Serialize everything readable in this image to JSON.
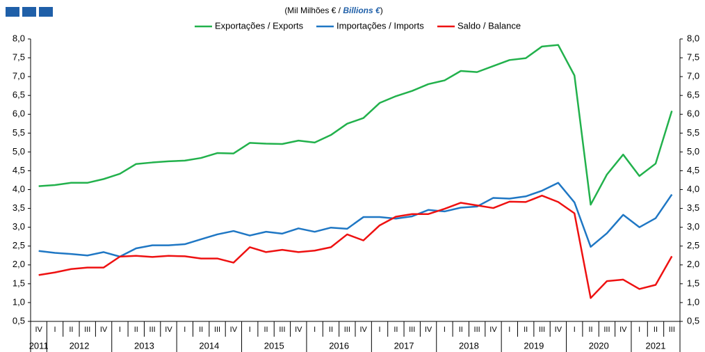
{
  "chart_data": {
    "type": "line",
    "subtitle": [
      "(Mil Milhões  € / ",
      "Billions €",
      ")"
    ],
    "categories": [
      "IV",
      "I",
      "II",
      "III",
      "IV",
      "I",
      "II",
      "III",
      "IV",
      "I",
      "II",
      "III",
      "IV",
      "I",
      "II",
      "III",
      "IV",
      "I",
      "II",
      "III",
      "IV",
      "I",
      "II",
      "III",
      "IV",
      "I",
      "II",
      "III",
      "IV",
      "I",
      "II",
      "III",
      "IV",
      "I",
      "II",
      "III",
      "IV",
      "I",
      "II",
      "III"
    ],
    "years": [
      "2011",
      "2012",
      "2013",
      "2014",
      "2015",
      "2016",
      "2017",
      "2018",
      "2019",
      "2020",
      "2021"
    ],
    "series": [
      {
        "name": "Exportações / Exports",
        "color": "#22b14c",
        "values": [
          4.09,
          4.12,
          4.18,
          4.18,
          4.28,
          4.42,
          4.68,
          4.72,
          4.75,
          4.77,
          4.84,
          4.97,
          4.96,
          5.24,
          5.22,
          5.21,
          5.3,
          5.25,
          5.45,
          5.75,
          5.9,
          6.3,
          6.48,
          6.62,
          6.8,
          6.9,
          7.15,
          7.12,
          7.28,
          7.44,
          7.49,
          7.8,
          7.84,
          7.03,
          3.6,
          4.4,
          4.93,
          4.36,
          4.69,
          6.09
        ]
      },
      {
        "name": "Importações / Imports",
        "color": "#1f77c4",
        "values": [
          2.37,
          2.32,
          2.29,
          2.25,
          2.34,
          2.22,
          2.44,
          2.52,
          2.52,
          2.55,
          2.68,
          2.81,
          2.9,
          2.78,
          2.88,
          2.83,
          2.97,
          2.88,
          2.99,
          2.96,
          3.27,
          3.27,
          3.23,
          3.29,
          3.46,
          3.42,
          3.52,
          3.55,
          3.78,
          3.76,
          3.82,
          3.97,
          4.18,
          3.66,
          2.48,
          2.84,
          3.33,
          3.0,
          3.24,
          3.87
        ]
      },
      {
        "name": "Saldo / Balance",
        "color": "#ee1111",
        "values": [
          1.73,
          1.8,
          1.89,
          1.93,
          1.93,
          2.22,
          2.24,
          2.21,
          2.24,
          2.23,
          2.17,
          2.17,
          2.06,
          2.47,
          2.34,
          2.4,
          2.34,
          2.38,
          2.47,
          2.81,
          2.65,
          3.05,
          3.28,
          3.35,
          3.35,
          3.49,
          3.65,
          3.58,
          3.51,
          3.68,
          3.67,
          3.84,
          3.67,
          3.37,
          1.12,
          1.57,
          1.61,
          1.36,
          1.47,
          2.23
        ]
      }
    ],
    "ylim": [
      0.5,
      8.0
    ],
    "yticks": [
      {
        "value": 0.5,
        "label": "0,5"
      },
      {
        "value": 1.0,
        "label": "1,0"
      },
      {
        "value": 1.5,
        "label": "1,5"
      },
      {
        "value": 2.0,
        "label": "2,0"
      },
      {
        "value": 2.5,
        "label": "2,5"
      },
      {
        "value": 3.0,
        "label": "3,0"
      },
      {
        "value": 3.5,
        "label": "3,5"
      },
      {
        "value": 4.0,
        "label": "4,0"
      },
      {
        "value": 4.5,
        "label": "4,5"
      },
      {
        "value": 5.0,
        "label": "5,0"
      },
      {
        "value": 5.5,
        "label": "5,5"
      },
      {
        "value": 6.0,
        "label": "6,0"
      },
      {
        "value": 6.5,
        "label": "6,5"
      },
      {
        "value": 7.0,
        "label": "7,0"
      },
      {
        "value": 7.5,
        "label": "7,5"
      },
      {
        "value": 8.0,
        "label": "8,0"
      }
    ],
    "y2lim": [
      0.5,
      8.0
    ],
    "y2ticks": [
      {
        "value": 0.5,
        "label": "0,5"
      },
      {
        "value": 1.0,
        "label": "1,0"
      },
      {
        "value": 1.5,
        "label": "1,5"
      },
      {
        "value": 2.0,
        "label": "2,0"
      },
      {
        "value": 2.5,
        "label": "2,5"
      },
      {
        "value": 3.0,
        "label": "3,0"
      },
      {
        "value": 3.5,
        "label": "3,5"
      },
      {
        "value": 4.0,
        "label": "4,0"
      },
      {
        "value": 4.5,
        "label": "4,5"
      },
      {
        "value": 5.0,
        "label": "5,0"
      },
      {
        "value": 5.5,
        "label": "5,5"
      },
      {
        "value": 6.0,
        "label": "6,0"
      },
      {
        "value": 6.5,
        "label": "6,5"
      },
      {
        "value": 7.0,
        "label": "7,0"
      },
      {
        "value": 7.5,
        "label": "7,5"
      },
      {
        "value": 8.0,
        "label": "8,0"
      }
    ]
  }
}
